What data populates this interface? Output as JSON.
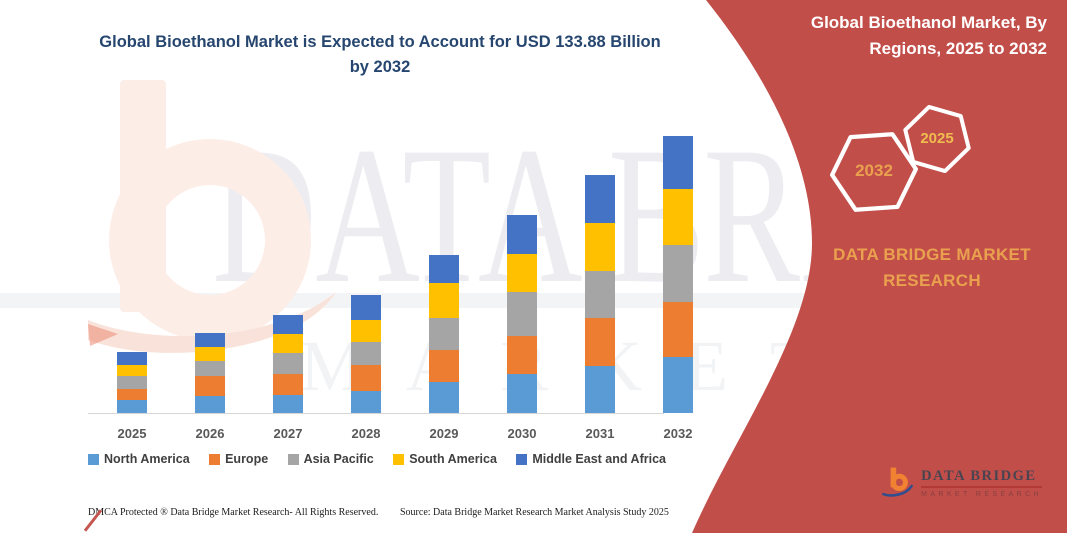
{
  "header": {
    "chart_title": "Global Bioethanol Market is Expected to Account for USD 133.88 Billion by 2032"
  },
  "chart_data": {
    "type": "bar",
    "stacked": true,
    "unit": "USD Billion",
    "title": "Global Bioethanol Market is Expected to Account for USD 133.88 Billion by 2032",
    "categories": [
      "2025",
      "2026",
      "2027",
      "2028",
      "2029",
      "2030",
      "2031",
      "2032"
    ],
    "series": [
      {
        "name": "North America",
        "color": "#5B9BD5",
        "values": [
          6.4,
          8.4,
          8.9,
          10.5,
          15.0,
          18.8,
          22.9,
          27.2
        ]
      },
      {
        "name": "Europe",
        "color": "#ED7D31",
        "values": [
          5.3,
          9.4,
          10.1,
          12.6,
          15.3,
          18.5,
          22.9,
          26.6
        ]
      },
      {
        "name": "Asia Pacific",
        "color": "#A5A5A5",
        "values": [
          6.0,
          7.2,
          10.0,
          11.3,
          15.6,
          21.0,
          23.0,
          27.4
        ]
      },
      {
        "name": "South America",
        "color": "#FFC000",
        "values": [
          5.6,
          6.8,
          9.4,
          10.8,
          16.8,
          18.8,
          23.1,
          27.0
        ]
      },
      {
        "name": "Middle East and Africa",
        "color": "#4472C4",
        "values": [
          6.0,
          6.9,
          9.2,
          11.7,
          13.7,
          18.5,
          22.9,
          25.68
        ]
      }
    ],
    "annotation": "2032 stacked total = USD 133.88 Billion",
    "y_axis": {
      "visible": false,
      "min": 0,
      "max": 140
    },
    "gridlines": false,
    "legend_position": "bottom"
  },
  "footer": {
    "dmca": "DMCA Protected ® Data Bridge Market Research-  All Rights Reserved.",
    "source": "Source: Data Bridge Market Research  Market Analysis Study 2025"
  },
  "panel": {
    "title": "Global Bioethanol Market, By Regions, 2025 to 2032",
    "hexagons": {
      "large": "2032",
      "small": "2025"
    },
    "brand_text": "DATA BRIDGE MARKET RESEARCH",
    "logo": {
      "name": "DATA BRIDGE",
      "tagline": "MARKET RESEARCH"
    }
  },
  "watermark": {
    "line1": "DATA BRIDGE",
    "line2": "MARKET RESEARCH"
  },
  "colors": {
    "panel_red": "#C24E4A",
    "title_navy": "#26466F",
    "gold": "#E9A14E",
    "hex_gold_small": "#EFBC4F",
    "axis_gray": "#D6D6D6",
    "year_label_gray": "#595959"
  }
}
